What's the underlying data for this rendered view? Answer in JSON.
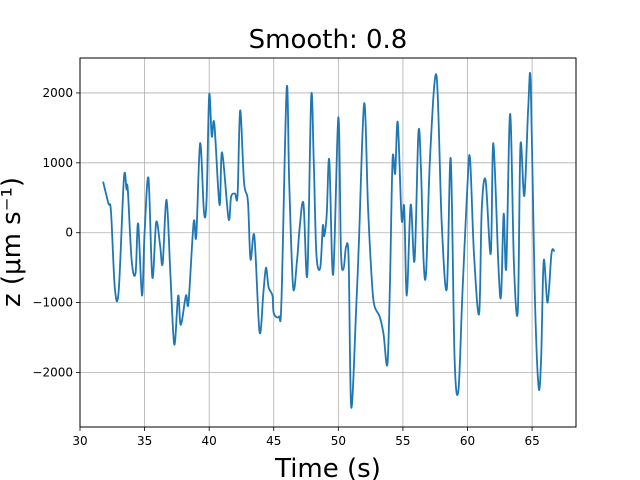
{
  "chart_data": {
    "type": "line",
    "title": "Smooth: 0.8",
    "xlabel": "Time (s)",
    "ylabel": "z (μm s⁻¹)",
    "xlim": [
      30,
      68.4
    ],
    "ylim": [
      -2780,
      2500
    ],
    "xticks": [
      30,
      35,
      40,
      45,
      50,
      55,
      60,
      65
    ],
    "yticks": [
      -2000,
      -1000,
      0,
      1000,
      2000
    ],
    "grid": true,
    "series": [
      {
        "color": "#1f77b4",
        "points": [
          [
            31.8,
            720
          ],
          [
            32.2,
            420
          ],
          [
            32.4,
            300
          ],
          [
            32.7,
            -800
          ],
          [
            33.0,
            -820
          ],
          [
            33.4,
            780
          ],
          [
            33.6,
            620
          ],
          [
            33.7,
            620
          ],
          [
            34.0,
            -400
          ],
          [
            34.3,
            -580
          ],
          [
            34.5,
            130
          ],
          [
            34.8,
            -900
          ],
          [
            35.0,
            0
          ],
          [
            35.3,
            780
          ],
          [
            35.6,
            -640
          ],
          [
            35.9,
            150
          ],
          [
            36.2,
            -180
          ],
          [
            36.4,
            -440
          ],
          [
            36.7,
            470
          ],
          [
            37.0,
            -600
          ],
          [
            37.3,
            -1600
          ],
          [
            37.6,
            -900
          ],
          [
            37.8,
            -1320
          ],
          [
            38.2,
            -900
          ],
          [
            38.4,
            -1000
          ],
          [
            38.8,
            150
          ],
          [
            39.0,
            -50
          ],
          [
            39.3,
            1280
          ],
          [
            39.6,
            290
          ],
          [
            39.8,
            480
          ],
          [
            40.0,
            1970
          ],
          [
            40.2,
            1380
          ],
          [
            40.4,
            1560
          ],
          [
            40.8,
            400
          ],
          [
            41.0,
            1150
          ],
          [
            41.5,
            200
          ],
          [
            41.7,
            520
          ],
          [
            42.0,
            560
          ],
          [
            42.2,
            540
          ],
          [
            42.4,
            1750
          ],
          [
            42.7,
            720
          ],
          [
            43.0,
            450
          ],
          [
            43.2,
            -380
          ],
          [
            43.5,
            -50
          ],
          [
            43.9,
            -1420
          ],
          [
            44.2,
            -850
          ],
          [
            44.4,
            -500
          ],
          [
            44.6,
            -780
          ],
          [
            44.9,
            -900
          ],
          [
            45.0,
            -1150
          ],
          [
            45.4,
            -1200
          ],
          [
            45.6,
            -950
          ],
          [
            46.0,
            2060
          ],
          [
            46.2,
            700
          ],
          [
            46.5,
            -780
          ],
          [
            46.8,
            -400
          ],
          [
            47.0,
            60
          ],
          [
            47.3,
            420
          ],
          [
            47.6,
            -600
          ],
          [
            47.9,
            1950
          ],
          [
            48.1,
            1000
          ],
          [
            48.3,
            -300
          ],
          [
            48.6,
            -500
          ],
          [
            48.8,
            100
          ],
          [
            48.9,
            -50
          ],
          [
            49.1,
            260
          ],
          [
            49.3,
            1040
          ],
          [
            49.6,
            -600
          ],
          [
            50.0,
            1650
          ],
          [
            50.2,
            -250
          ],
          [
            50.4,
            -520
          ],
          [
            50.6,
            -200
          ],
          [
            50.8,
            -400
          ],
          [
            51.0,
            -2500
          ],
          [
            51.4,
            -1000
          ],
          [
            51.6,
            -100
          ],
          [
            52.0,
            1850
          ],
          [
            52.3,
            360
          ],
          [
            52.6,
            -700
          ],
          [
            52.8,
            -1050
          ],
          [
            53.2,
            -1200
          ],
          [
            53.5,
            -1450
          ],
          [
            53.8,
            -1880
          ],
          [
            54.0,
            -700
          ],
          [
            54.2,
            1050
          ],
          [
            54.4,
            850
          ],
          [
            54.6,
            1580
          ],
          [
            54.9,
            200
          ],
          [
            55.1,
            360
          ],
          [
            55.3,
            -900
          ],
          [
            55.6,
            400
          ],
          [
            55.9,
            -400
          ],
          [
            56.2,
            1430
          ],
          [
            56.4,
            900
          ],
          [
            56.6,
            -400
          ],
          [
            56.8,
            -550
          ],
          [
            57.1,
            1080
          ],
          [
            57.6,
            2250
          ],
          [
            58.0,
            150
          ],
          [
            58.4,
            -800
          ],
          [
            58.7,
            1060
          ],
          [
            59.0,
            -1800
          ],
          [
            59.3,
            -2250
          ],
          [
            59.6,
            -900
          ],
          [
            60.0,
            700
          ],
          [
            60.2,
            1050
          ],
          [
            60.5,
            -300
          ],
          [
            60.9,
            -1160
          ],
          [
            61.1,
            320
          ],
          [
            61.4,
            750
          ],
          [
            61.8,
            -300
          ],
          [
            62.0,
            1280
          ],
          [
            62.4,
            -500
          ],
          [
            62.6,
            -900
          ],
          [
            62.8,
            270
          ],
          [
            63.0,
            -500
          ],
          [
            63.3,
            1700
          ],
          [
            63.6,
            -480
          ],
          [
            63.9,
            -1100
          ],
          [
            64.1,
            1250
          ],
          [
            64.4,
            530
          ],
          [
            64.7,
            1780
          ],
          [
            64.9,
            2120
          ],
          [
            65.2,
            -800
          ],
          [
            65.5,
            -2200
          ],
          [
            65.7,
            -1800
          ],
          [
            65.9,
            -400
          ],
          [
            66.2,
            -1000
          ],
          [
            66.5,
            -300
          ],
          [
            66.7,
            -260
          ]
        ]
      }
    ]
  }
}
